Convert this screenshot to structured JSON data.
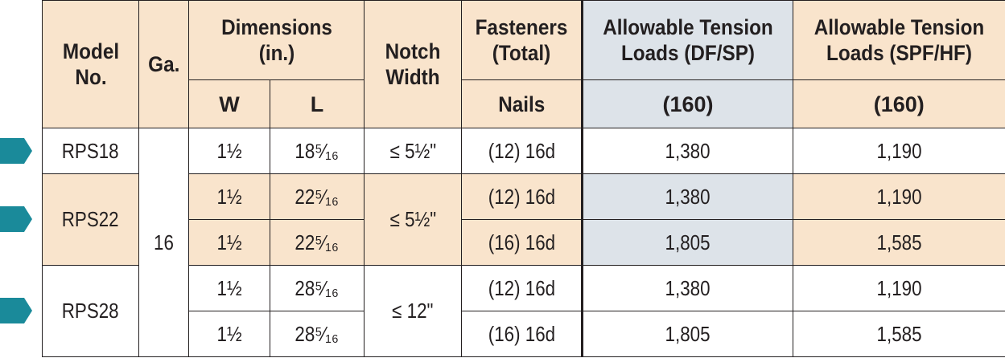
{
  "colors": {
    "header_bg": "#f9e4cc",
    "header_blue_bg": "#dde3e9",
    "marker": "#1a8a9a",
    "border": "#231f20"
  },
  "headers": {
    "model": "Model No.",
    "ga": "Ga.",
    "dimensions": "Dimensions (in.)",
    "w": "W",
    "l": "L",
    "notch": "Notch Width",
    "fasteners": "Fasteners (Total)",
    "nails": "Nails",
    "tension_df": "Allowable Tension Loads (DF/SP)",
    "tension_df_sub": "(160)",
    "tension_spf": "Allowable Tension Loads (SPF/HF)",
    "tension_spf_sub": "(160)"
  },
  "gauge": "16",
  "models": [
    {
      "name": "RPS18",
      "notch": "≤ 5½\""
    },
    {
      "name": "RPS22",
      "notch": "≤ 5½\""
    },
    {
      "name": "RPS28",
      "notch": "≤ 12\""
    }
  ],
  "rows": [
    {
      "w": "1½",
      "l": "18⁵⁄₁₆",
      "nails": "(12) 16d",
      "df": "1,380",
      "spf": "1,190"
    },
    {
      "w": "1½",
      "l": "22⁵⁄₁₆",
      "nails": "(12) 16d",
      "df": "1,380",
      "spf": "1,190"
    },
    {
      "w": "1½",
      "l": "22⁵⁄₁₆",
      "nails": "(16) 16d",
      "df": "1,805",
      "spf": "1,585"
    },
    {
      "w": "1½",
      "l": "28⁵⁄₁₆",
      "nails": "(12) 16d",
      "df": "1,380",
      "spf": "1,190"
    },
    {
      "w": "1½",
      "l": "28⁵⁄₁₆",
      "nails": "(16) 16d",
      "df": "1,805",
      "spf": "1,585"
    }
  ]
}
